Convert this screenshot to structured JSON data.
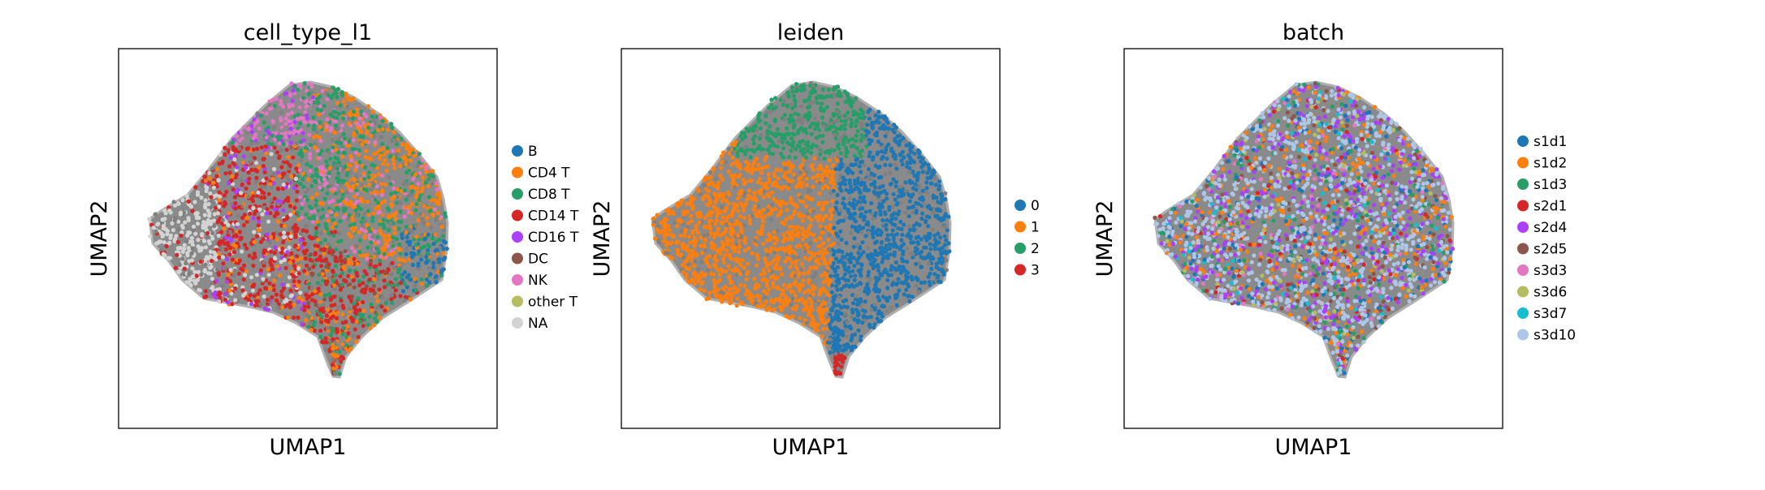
{
  "chart_data": [
    {
      "type": "scatter",
      "title": "cell_type_l1",
      "xlabel": "UMAP1",
      "ylabel": "UMAP2",
      "grid": false,
      "legend_position": "right",
      "categories": [
        {
          "name": "B",
          "color": "#1f77b4"
        },
        {
          "name": "CD4 T",
          "color": "#ff7f0e"
        },
        {
          "name": "CD8 T",
          "color": "#279e68"
        },
        {
          "name": "CD14 T",
          "color": "#d62728"
        },
        {
          "name": "CD16 T",
          "color": "#aa40fc"
        },
        {
          "name": "DC",
          "color": "#8c564b"
        },
        {
          "name": "NK",
          "color": "#e377c2"
        },
        {
          "name": "other T",
          "color": "#b5bd61"
        },
        {
          "name": "NA",
          "color": "#d3d3d3"
        }
      ]
    },
    {
      "type": "scatter",
      "title": "leiden",
      "xlabel": "UMAP1",
      "ylabel": "UMAP2",
      "grid": false,
      "legend_position": "right",
      "categories": [
        {
          "name": "0",
          "color": "#1f77b4"
        },
        {
          "name": "1",
          "color": "#ff7f0e"
        },
        {
          "name": "2",
          "color": "#279e68"
        },
        {
          "name": "3",
          "color": "#d62728"
        }
      ]
    },
    {
      "type": "scatter",
      "title": "batch",
      "xlabel": "UMAP1",
      "ylabel": "UMAP2",
      "grid": false,
      "legend_position": "right",
      "categories": [
        {
          "name": "s1d1",
          "color": "#1f77b4"
        },
        {
          "name": "s1d2",
          "color": "#ff7f0e"
        },
        {
          "name": "s1d3",
          "color": "#279e68"
        },
        {
          "name": "s2d1",
          "color": "#d62728"
        },
        {
          "name": "s2d4",
          "color": "#aa40fc"
        },
        {
          "name": "s2d5",
          "color": "#8c564b"
        },
        {
          "name": "s3d3",
          "color": "#e377c2"
        },
        {
          "name": "s3d6",
          "color": "#b5bd61"
        },
        {
          "name": "s3d7",
          "color": "#17becf"
        },
        {
          "name": "s3d10",
          "color": "#aec7e8"
        }
      ]
    }
  ]
}
